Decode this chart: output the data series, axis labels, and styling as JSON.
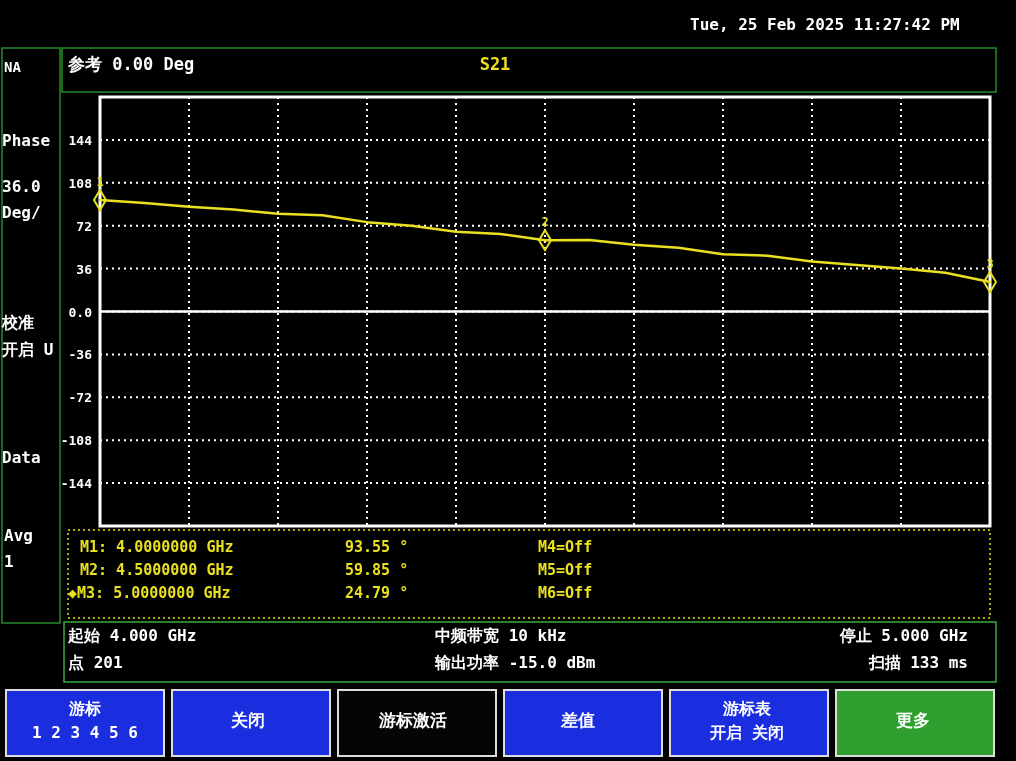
{
  "chart_data": {
    "type": "line",
    "title": "S21",
    "subtitle": "参考 0.00 Deg",
    "categories": [
      null,
      null,
      null,
      null,
      null,
      null,
      null,
      null,
      null,
      null,
      null,
      null,
      null,
      null,
      null,
      null,
      null,
      null,
      null,
      null,
      null
    ],
    "series": [
      {
        "color": "#e8e020",
        "values": [
          93.55,
          91,
          88,
          85.5,
          82,
          80.8,
          75,
          72,
          67,
          65,
          59.85,
          60,
          56,
          53.5,
          48,
          46.8,
          42,
          39,
          36,
          32.5,
          24.79
        ]
      }
    ],
    "ylim": [
      -180,
      180
    ],
    "yticks": [
      -144,
      -108,
      -72,
      -36,
      {
        "value": 0,
        "label": "0.0"
      },
      36,
      72,
      108,
      144
    ],
    "tick_labels": "y",
    "grid": true,
    "marker": "none",
    "line_style": "solid",
    "ref_lines": [
      {
        "axis": "y",
        "value": 0,
        "color": "#ffffff"
      }
    ],
    "annotations": [
      {
        "text": "1",
        "y": 93.55
      },
      {
        "text": "2",
        "y": 59.85
      },
      {
        "text": "3",
        "y": 24.79
      },
      "Tue, 25 Feb 2025 11:27:42 PM",
      "NA",
      "Phase",
      "36.0",
      "Deg/",
      "校准",
      "开启 U",
      "Data",
      "Avg",
      "1",
      "M1:  4.0000000 GHz",
      "93.55 °",
      "M4=Off",
      "M2:  4.5000000 GHz",
      "59.85 °",
      "M5=Off",
      "◆M3:  5.0000000 GHz",
      "24.79 °",
      "M6=Off",
      "起始 4.000 GHz",
      "中频带宽 10 kHz",
      "停止 5.000 GHz",
      "点 201",
      "输出功率 -15.0 dBm",
      "扫描 133 ms",
      "游标",
      "1 2 3 4 5 6",
      "关闭",
      "游标激活",
      "差值",
      "游标表",
      "开启 关闭",
      "更多"
    ]
  }
}
